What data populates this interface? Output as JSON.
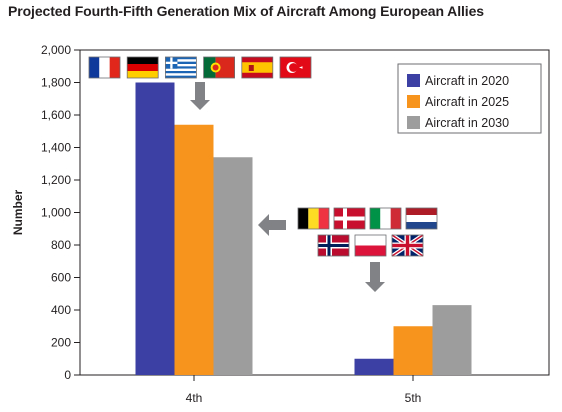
{
  "chart_data": {
    "type": "bar",
    "title": "Projected Fourth-Fifth Generation Mix of Aircraft Among European Allies",
    "xlabel": "",
    "ylabel": "Number",
    "categories": [
      "4th",
      "5th"
    ],
    "series": [
      {
        "name": "Aircraft in 2020",
        "values": [
          1800,
          100
        ],
        "color": "#3c3fa3"
      },
      {
        "name": "Aircraft in 2025",
        "values": [
          1540,
          300
        ],
        "color": "#f7941d"
      },
      {
        "name": "Aircraft in 2030",
        "values": [
          1340,
          430
        ],
        "color": "#9d9d9d"
      }
    ],
    "ylim": [
      0,
      2000
    ],
    "yticks": [
      0,
      200,
      400,
      600,
      800,
      1000,
      1200,
      1400,
      1600,
      1800,
      2000
    ],
    "ytick_labels": [
      "0",
      "200",
      "400",
      "600",
      "800",
      "1,000",
      "1,200",
      "1,400",
      "1,600",
      "1,800",
      "2,000"
    ],
    "grid": false,
    "legend_placement": "top-right",
    "annotations": {
      "group_4th_flags": [
        "France",
        "Germany",
        "Greece",
        "Portugal",
        "Spain",
        "Turkey"
      ],
      "group_5th_flags_row1": [
        "Belgium",
        "Denmark",
        "Italy",
        "Netherlands"
      ],
      "group_5th_flags_row2": [
        "Norway",
        "Poland",
        "United Kingdom"
      ]
    }
  }
}
